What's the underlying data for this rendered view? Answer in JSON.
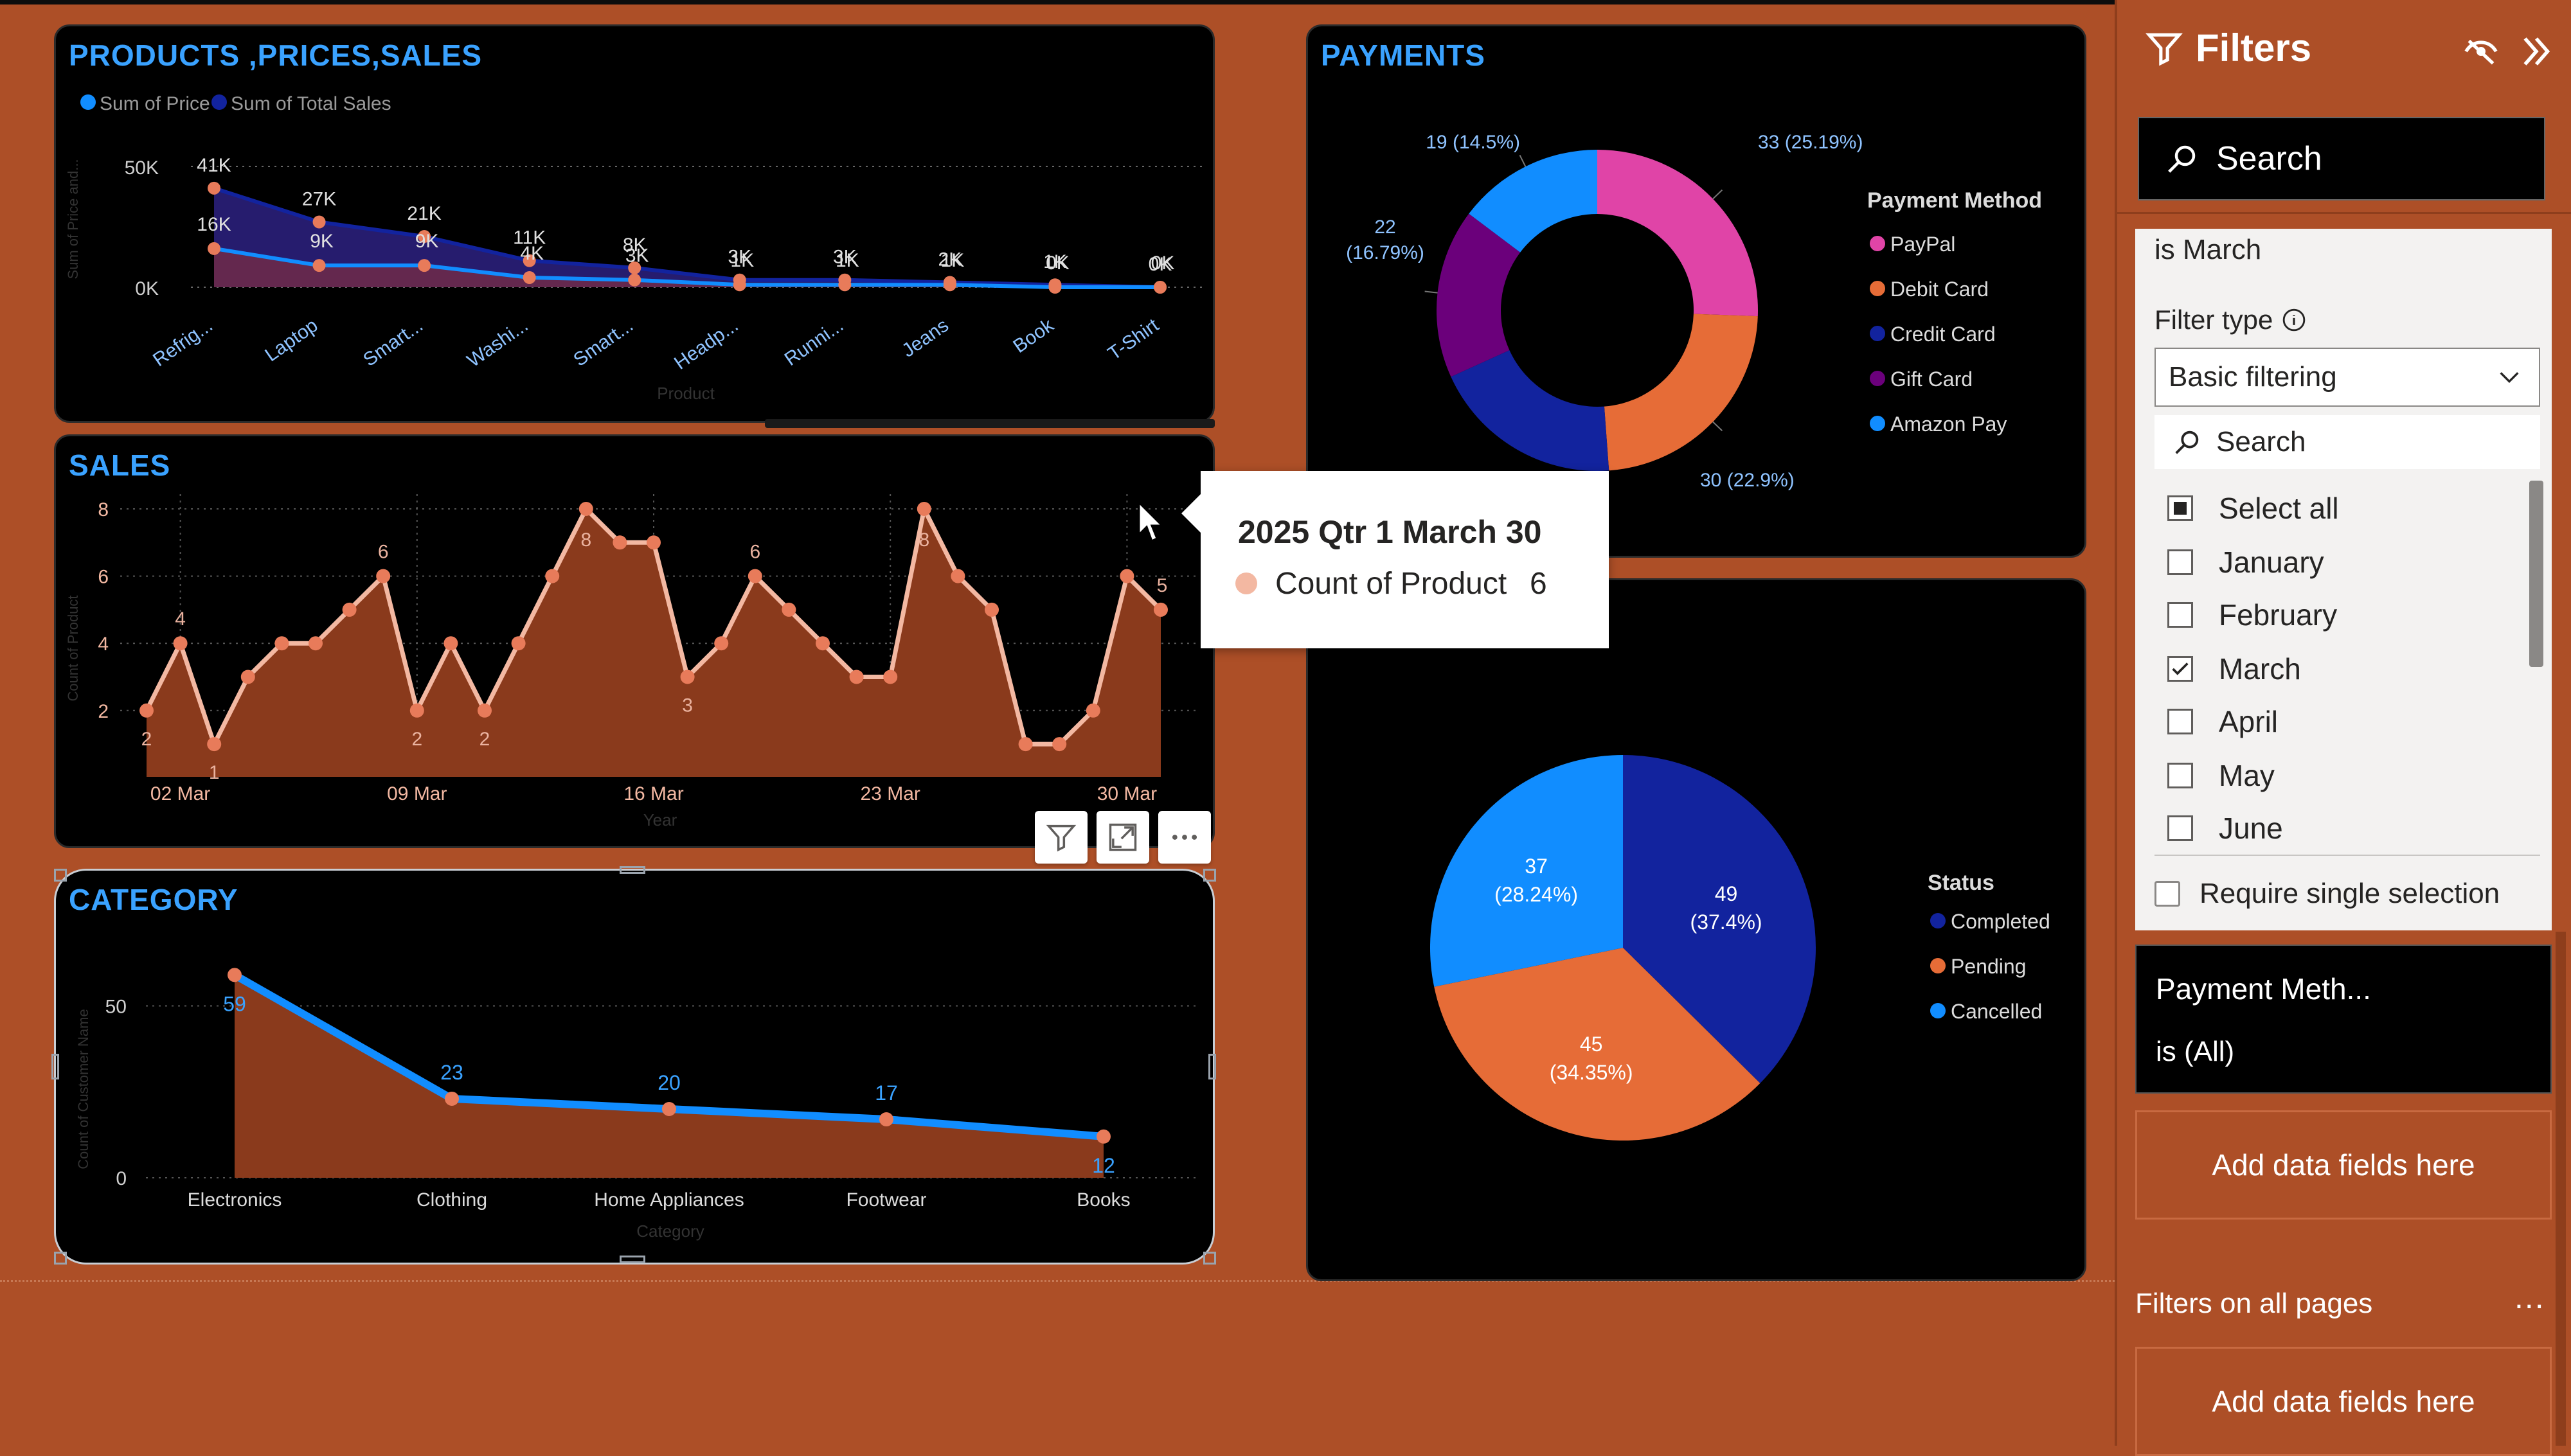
{
  "colors": {
    "page_bg": "#ad4f27",
    "card_bg": "#000000",
    "title_blue": "#3aa2ff",
    "area_fill": "#8a3a1c",
    "line_peach": "#f3b8a2",
    "dot_orange": "#e87b5a"
  },
  "products_chart": {
    "title": "PRODUCTS ,PRICES,SALES",
    "legend": [
      "Sum of Price",
      "Sum of Total Sales"
    ],
    "ylabel": "Sum of Price and...",
    "xlabel": "Product",
    "y_ticks": [
      "50K",
      "0K"
    ],
    "chart_data": {
      "type": "area",
      "categories": [
        "Refrig...",
        "Laptop",
        "Smart...",
        "Washi...",
        "Smart...",
        "Headp...",
        "Runni...",
        "Jeans",
        "Book",
        "T-Shirt"
      ],
      "series": [
        {
          "name": "Sum of Price",
          "values": [
            16,
            9,
            9,
            4,
            3,
            1,
            1,
            1,
            0,
            0
          ],
          "labels": [
            "16K",
            "9K",
            "9K",
            "4K",
            "3K",
            "1K",
            "1K",
            "1K",
            "0K",
            "0K"
          ]
        },
        {
          "name": "Sum of Total Sales",
          "values": [
            41,
            27,
            21,
            11,
            8,
            3,
            3,
            2,
            1,
            0
          ],
          "labels": [
            "41K",
            "27K",
            "21K",
            "11K",
            "8K",
            "3K",
            "3K",
            "2K",
            "1K",
            "0K"
          ]
        }
      ],
      "ylim": [
        0,
        50
      ]
    }
  },
  "sales_chart": {
    "title": "SALES",
    "ylabel": "Count of Product",
    "xlabel": "Year",
    "y_ticks": [
      "8",
      "6",
      "4",
      "2"
    ],
    "x_ticks": [
      "02 Mar",
      "09 Mar",
      "16 Mar",
      "23 Mar",
      "30 Mar"
    ],
    "chart_data": {
      "type": "area",
      "x": [
        "01 Mar",
        "02 Mar",
        "03 Mar",
        "04 Mar",
        "05 Mar",
        "06 Mar",
        "07 Mar",
        "08 Mar",
        "09 Mar",
        "10 Mar",
        "11 Mar",
        "12 Mar",
        "13 Mar",
        "14 Mar",
        "15 Mar",
        "16 Mar",
        "17 Mar",
        "18 Mar",
        "19 Mar",
        "20 Mar",
        "21 Mar",
        "22 Mar",
        "23 Mar",
        "24 Mar",
        "25 Mar",
        "26 Mar",
        "27 Mar",
        "28 Mar",
        "29 Mar",
        "30 Mar",
        "31 Mar"
      ],
      "values": [
        2,
        4,
        1,
        3,
        4,
        4,
        5,
        6,
        2,
        4,
        2,
        4,
        6,
        8,
        7,
        7,
        3,
        4,
        6,
        5,
        4,
        3,
        3,
        8,
        6,
        5,
        1,
        1,
        2,
        6,
        5
      ],
      "data_labels": {
        "0": "2",
        "1": "4",
        "2": "1",
        "7": "6",
        "8": "2",
        "10": "2",
        "13": "8",
        "16": "3",
        "18": "6",
        "23": "8",
        "30": "5"
      },
      "ylim": [
        1,
        8
      ]
    }
  },
  "category_chart": {
    "title": "CATEGORY",
    "ylabel": "Count of Customer Name",
    "xlabel": "Category",
    "y_ticks": [
      "50",
      "0"
    ],
    "chart_data": {
      "type": "area",
      "categories": [
        "Electronics",
        "Clothing",
        "Home Appliances",
        "Footwear",
        "Books"
      ],
      "values": [
        59,
        23,
        20,
        17,
        12
      ],
      "ylim": [
        0,
        60
      ]
    }
  },
  "payments_chart": {
    "title": "PAYMENTS",
    "legend_title": "Payment Method",
    "chart_data": {
      "type": "pie",
      "slices": [
        {
          "name": "PayPal",
          "value": 33,
          "label": "33 (25.19%)",
          "color": "#e044a7"
        },
        {
          "name": "Debit Card",
          "value": 30,
          "label": "30 (22.9%)",
          "color": "#e66c37"
        },
        {
          "name": "Credit Card",
          "value": 25,
          "label": "",
          "color": "#12239e"
        },
        {
          "name": "Gift Card",
          "value": 22,
          "label": "22 (16.79%)",
          "color": "#6b007b"
        },
        {
          "name": "Amazon Pay",
          "value": 19,
          "label": "19 (14.5%)",
          "color": "#118dff"
        }
      ]
    }
  },
  "status_chart": {
    "legend_title": "Status",
    "chart_data": {
      "type": "pie",
      "slices": [
        {
          "name": "Completed",
          "value": 49,
          "line1": "49",
          "line2": "(37.4%)",
          "color": "#12239e"
        },
        {
          "name": "Pending",
          "value": 45,
          "line1": "45",
          "line2": "(34.35%)",
          "color": "#e66c37"
        },
        {
          "name": "Cancelled",
          "value": 37,
          "line1": "37",
          "line2": "(28.24%)",
          "color": "#118dff"
        }
      ]
    }
  },
  "tooltip": {
    "title": "2025 Qtr 1 March 30",
    "label": "Count of Product",
    "value": "6"
  },
  "filters": {
    "title": "Filters",
    "search_placeholder": "Search",
    "month_card": {
      "summary": "is March",
      "filter_type_label": "Filter type",
      "filter_type_value": "Basic filtering",
      "search_placeholder": "Search",
      "options": [
        {
          "label": "Select all",
          "state": "partial"
        },
        {
          "label": "January",
          "state": "off"
        },
        {
          "label": "February",
          "state": "off"
        },
        {
          "label": "March",
          "state": "on"
        },
        {
          "label": "April",
          "state": "off"
        },
        {
          "label": "May",
          "state": "off"
        },
        {
          "label": "June",
          "state": "off"
        }
      ],
      "require_single": "Require single selection"
    },
    "payment_card": {
      "name": "Payment Meth...",
      "summary": "is (All)"
    },
    "add_fields_label": "Add data fields here",
    "all_pages_label": "Filters on all pages",
    "more": "..."
  }
}
